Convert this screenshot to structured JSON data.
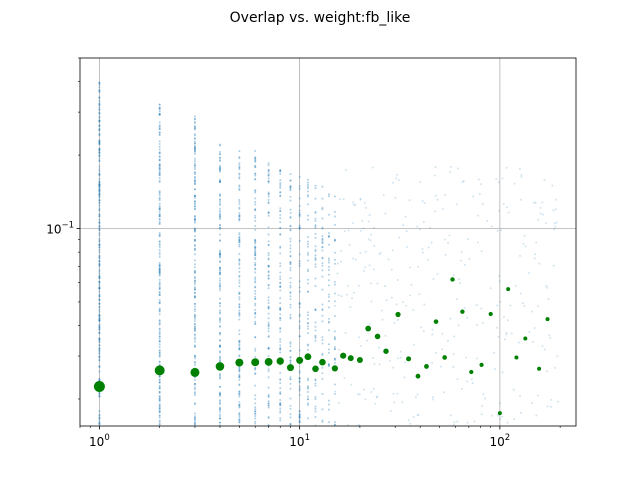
{
  "chart_data": {
    "type": "scatter",
    "title": "Overlap vs. weight:fb_like",
    "xlabel": "",
    "ylabel": "",
    "x_scale": "log",
    "y_scale": "log",
    "xlim": [
      0.8,
      240
    ],
    "ylim": [
      0.0155,
      0.5
    ],
    "grid": true,
    "x_tick_labels": [
      {
        "value": 1,
        "base": "10",
        "exp": "0"
      },
      {
        "value": 10,
        "base": "10",
        "exp": "1"
      },
      {
        "value": 100,
        "base": "10",
        "exp": "2"
      }
    ],
    "y_tick_labels": [
      {
        "value": 0.1,
        "base": "10",
        "exp": "−1"
      }
    ],
    "colors": {
      "raw_points": "#1f77b4",
      "binned_means": "#008000",
      "grid": "#b0b0b0"
    },
    "series": [
      {
        "kind": "binned_means",
        "points": [
          {
            "x": 1,
            "y": 0.0225,
            "s": 5.5
          },
          {
            "x": 2,
            "y": 0.0262,
            "s": 5
          },
          {
            "x": 3,
            "y": 0.0257,
            "s": 4.5
          },
          {
            "x": 4,
            "y": 0.0272,
            "s": 4.3
          },
          {
            "x": 5,
            "y": 0.0282,
            "s": 4
          },
          {
            "x": 6,
            "y": 0.0283,
            "s": 4
          },
          {
            "x": 7,
            "y": 0.0284,
            "s": 3.9
          },
          {
            "x": 8,
            "y": 0.0286,
            "s": 3.7
          },
          {
            "x": 9,
            "y": 0.0269,
            "s": 3.5
          },
          {
            "x": 10,
            "y": 0.0288,
            "s": 3.5
          },
          {
            "x": 11,
            "y": 0.0298,
            "s": 3.4
          },
          {
            "x": 12,
            "y": 0.0266,
            "s": 3.3
          },
          {
            "x": 13,
            "y": 0.0283,
            "s": 3.3
          },
          {
            "x": 15,
            "y": 0.0267,
            "s": 3.1
          },
          {
            "x": 16.5,
            "y": 0.0301,
            "s": 3.1
          },
          {
            "x": 18,
            "y": 0.0294,
            "s": 3
          },
          {
            "x": 20,
            "y": 0.0289,
            "s": 3
          },
          {
            "x": 22,
            "y": 0.0389,
            "s": 2.9
          },
          {
            "x": 24.5,
            "y": 0.0361,
            "s": 2.8
          },
          {
            "x": 27,
            "y": 0.0314,
            "s": 2.7
          },
          {
            "x": 31,
            "y": 0.0444,
            "s": 2.6
          },
          {
            "x": 35,
            "y": 0.0292,
            "s": 2.5
          },
          {
            "x": 39,
            "y": 0.0248,
            "s": 2.4
          },
          {
            "x": 43,
            "y": 0.0272,
            "s": 2.4
          },
          {
            "x": 48,
            "y": 0.0415,
            "s": 2.3
          },
          {
            "x": 53,
            "y": 0.0296,
            "s": 2.3
          },
          {
            "x": 58,
            "y": 0.0618,
            "s": 2.2
          },
          {
            "x": 65,
            "y": 0.0456,
            "s": 2.2
          },
          {
            "x": 72,
            "y": 0.0258,
            "s": 2.1
          },
          {
            "x": 81,
            "y": 0.0276,
            "s": 2.1
          },
          {
            "x": 90,
            "y": 0.0446,
            "s": 2.1
          },
          {
            "x": 100,
            "y": 0.0175,
            "s": 2
          },
          {
            "x": 110,
            "y": 0.0564,
            "s": 2
          },
          {
            "x": 121,
            "y": 0.0296,
            "s": 2
          },
          {
            "x": 134,
            "y": 0.0354,
            "s": 2
          },
          {
            "x": 157,
            "y": 0.0266,
            "s": 2
          },
          {
            "x": 173,
            "y": 0.0425,
            "s": 2
          }
        ]
      }
    ]
  }
}
